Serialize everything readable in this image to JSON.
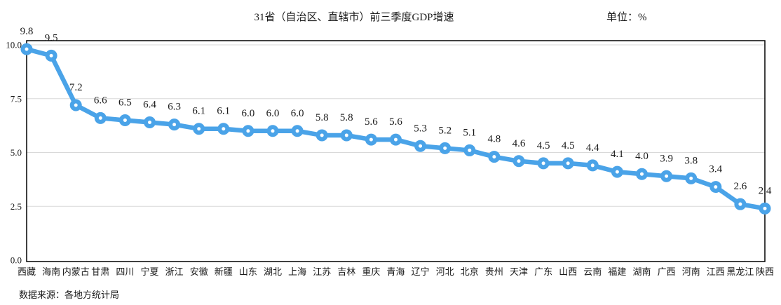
{
  "chart_data": {
    "type": "line",
    "title": "31省（自治区、直辖市）前三季度GDP增速",
    "unit_label": "单位：%",
    "source": "数据来源：各地方统计局",
    "xlabel": "",
    "ylabel": "",
    "categories": [
      "西藏",
      "海南",
      "内蒙古",
      "甘肃",
      "四川",
      "宁夏",
      "浙江",
      "安徽",
      "新疆",
      "山东",
      "湖北",
      "上海",
      "江苏",
      "吉林",
      "重庆",
      "青海",
      "辽宁",
      "河北",
      "北京",
      "贵州",
      "天津",
      "广东",
      "山西",
      "云南",
      "福建",
      "湖南",
      "广西",
      "河南",
      "江西",
      "黑龙江",
      "陕西"
    ],
    "values": [
      9.8,
      9.5,
      7.2,
      6.6,
      6.5,
      6.4,
      6.3,
      6.1,
      6.1,
      6.0,
      6.0,
      6.0,
      5.8,
      5.8,
      5.6,
      5.6,
      5.3,
      5.2,
      5.1,
      4.8,
      4.6,
      4.5,
      4.5,
      4.4,
      4.1,
      4.0,
      3.9,
      3.8,
      3.4,
      2.6,
      2.4
    ],
    "ytick_values": [
      0.0,
      2.5,
      5.0,
      7.5,
      10.0
    ],
    "ylim": [
      0,
      10.3
    ],
    "grid": true,
    "legend": "none",
    "data_labels": true,
    "line_color": "#4aa3e8",
    "marker_fill": "#ffffff",
    "grid_color": "#d9d9d9",
    "frame_color": "#000000"
  }
}
